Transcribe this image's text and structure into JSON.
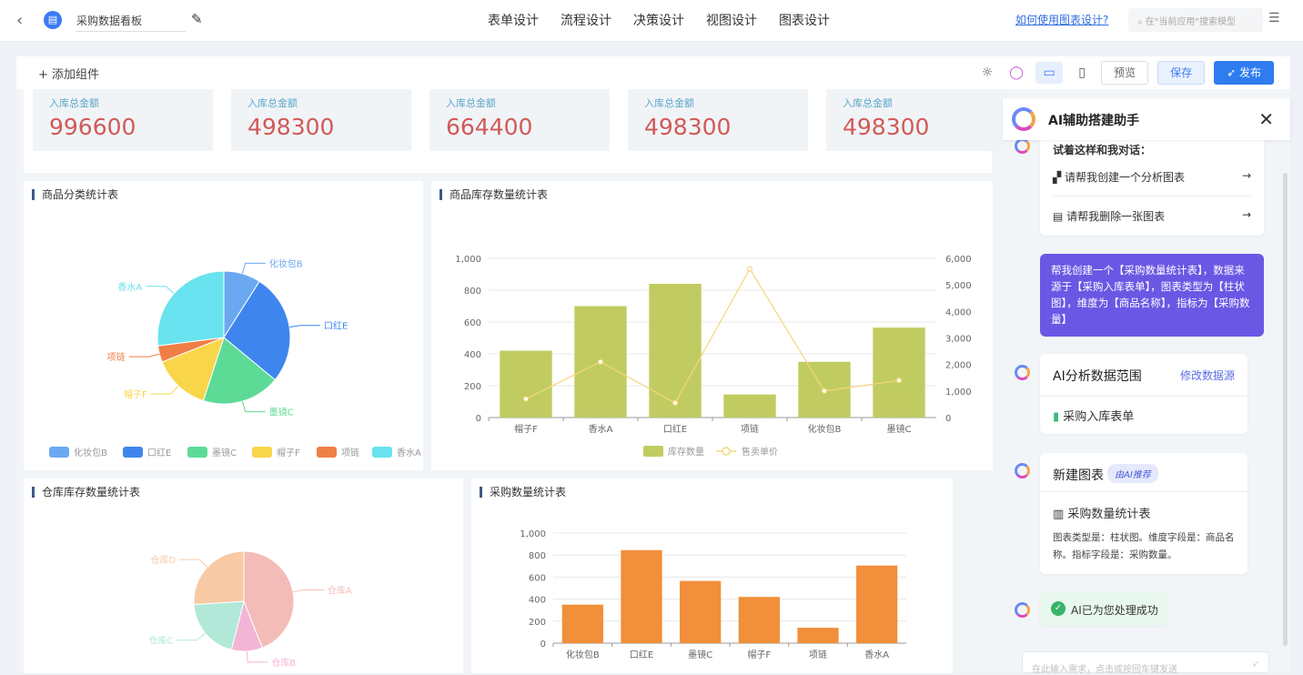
{
  "header": {
    "app_title": "采购数据看板",
    "nav": [
      "表单设计",
      "流程设计",
      "决策设计",
      "视图设计",
      "图表设计"
    ],
    "help_link": "如何使用图表设计?",
    "search_placeholder": "在\"当前应用\"搜索模型"
  },
  "toolbar": {
    "add_widget": "+ 添加组件",
    "preview": "预览",
    "save": "保存",
    "publish": "发布"
  },
  "kpis": [
    {
      "label": "入库总金额",
      "value": "996600"
    },
    {
      "label": "入库总金额",
      "value": "498300"
    },
    {
      "label": "入库总金额",
      "value": "664400"
    },
    {
      "label": "入库总金额",
      "value": "498300"
    },
    {
      "label": "入库总金额",
      "value": "498300"
    }
  ],
  "ai": {
    "title": "AI辅助搭建助手",
    "try_title": "试着这样和我对话：",
    "suggestions": [
      "请帮我创建一个分析图表",
      "请帮我删除一张图表"
    ],
    "user_message": "帮我创建一个【采购数量统计表】，数据来源于【采购入库表单】，图表类型为【柱状图】，维度为【商品名称】，指标为【采购数量】",
    "range_title": "AI分析数据范围",
    "range_action": "修改数据源",
    "range_source": "采购入库表单",
    "new_chart_title": "新建图表",
    "new_chart_badge": "由AI推荐",
    "new_chart_name": "采购数量统计表",
    "new_chart_desc": "图表类型是：柱状图。维度字段是：商品名称。指标字段是：采购数量。",
    "success": "AI已为您处理成功",
    "input_placeholder": "在此输入需求，点击或按回车键发送"
  },
  "chart_data": [
    {
      "type": "pie",
      "title": "商品分类统计表",
      "categories": [
        "化妆包B",
        "口红E",
        "墨镜C",
        "帽子F",
        "项链",
        "香水A"
      ],
      "values": [
        9,
        27,
        19,
        14,
        4,
        27
      ],
      "colors": [
        "#6aa9f2",
        "#3e86ee",
        "#5ddb96",
        "#f9d54a",
        "#ef7f45",
        "#69e3ef"
      ]
    },
    {
      "type": "bar",
      "title": "商品库存数量统计表",
      "categories": [
        "帽子F",
        "香水A",
        "口红E",
        "项链",
        "化妆包B",
        "墨镜C"
      ],
      "series": [
        {
          "name": "库存数量",
          "type": "bar",
          "values": [
            420,
            700,
            840,
            145,
            350,
            565
          ],
          "color": "#c0cc61"
        },
        {
          "name": "售卖单价",
          "type": "line",
          "axis": "right",
          "values": [
            700,
            2100,
            550,
            5600,
            1000,
            1400
          ],
          "color": "#f6d77a"
        }
      ],
      "ylim": [
        0,
        1000
      ],
      "ylim_right": [
        0,
        6000
      ],
      "yticks": [
        "0",
        "200",
        "400",
        "600",
        "800",
        "1,000"
      ],
      "yticks_right": [
        "0",
        "1,000",
        "2,000",
        "3,000",
        "4,000",
        "5,000",
        "6,000"
      ]
    },
    {
      "type": "pie",
      "title": "仓库库存数量统计表",
      "categories": [
        "仓库A",
        "仓库B",
        "仓库C",
        "仓库D"
      ],
      "values": [
        44,
        10,
        20,
        26
      ],
      "colors": [
        "#f4bcb8",
        "#f3b5d6",
        "#b2e8d8",
        "#f8c9a5"
      ]
    },
    {
      "type": "bar",
      "title": "采购数量统计表",
      "categories": [
        "化妆包B",
        "口红E",
        "墨镜C",
        "帽子F",
        "项链",
        "香水A"
      ],
      "values": [
        350,
        845,
        565,
        420,
        140,
        705
      ],
      "color": "#f18f3a",
      "ylim": [
        0,
        1000
      ],
      "yticks": [
        "0",
        "200",
        "400",
        "600",
        "800",
        "1,000"
      ]
    }
  ]
}
